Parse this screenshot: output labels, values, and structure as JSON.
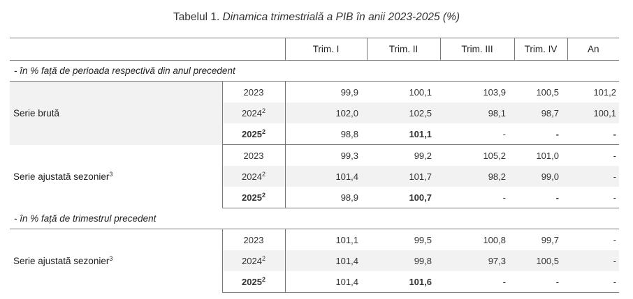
{
  "caption": {
    "prefix": "Tabelul 1.",
    "title": "Dinamica trimestrială a PIB în anii 2023-2025 (%)"
  },
  "headers": [
    "Trim. I",
    "Trim. II",
    "Trim. III",
    "Trim. IV",
    "An"
  ],
  "sections": [
    {
      "title": "- în % față de perioada respectivă din anul precedent",
      "groups": [
        {
          "label": "Serie brută",
          "label_sup": "",
          "rows": [
            {
              "year": "2023",
              "year_sup": "",
              "values": [
                "99,9",
                "100,1",
                "103,9",
                "100,5",
                "101,2"
              ]
            },
            {
              "year": "2024",
              "year_sup": "2",
              "values": [
                "102,0",
                "102,5",
                "98,1",
                "98,7",
                "100,1"
              ]
            },
            {
              "year": "2025",
              "year_sup": "2",
              "values": [
                "98,8",
                "101,1",
                "-",
                "-",
                "-"
              ]
            }
          ]
        },
        {
          "label": "Serie ajustată sezonier",
          "label_sup": "3",
          "rows": [
            {
              "year": "2023",
              "year_sup": "",
              "values": [
                "99,3",
                "99,2",
                "105,2",
                "101,0",
                "-"
              ]
            },
            {
              "year": "2024",
              "year_sup": "2",
              "values": [
                "101,4",
                "101,7",
                "98,2",
                "99,0",
                "-"
              ]
            },
            {
              "year": "2025",
              "year_sup": "2",
              "values": [
                "98,9",
                "100,7",
                "-",
                "-",
                "-"
              ]
            }
          ]
        }
      ]
    },
    {
      "title": "- în % față de trimestrul precedent",
      "groups": [
        {
          "label": "Serie ajustată sezonier",
          "label_sup": "3",
          "rows": [
            {
              "year": "2023",
              "year_sup": "",
              "values": [
                "101,1",
                "99,5",
                "100,8",
                "99,7",
                "-"
              ]
            },
            {
              "year": "2024",
              "year_sup": "2",
              "values": [
                "101,4",
                "99,8",
                "97,3",
                "100,5",
                "-"
              ]
            },
            {
              "year": "2025",
              "year_sup": "2",
              "values": [
                "101,4",
                "101,6",
                "-",
                "-",
                "-"
              ]
            }
          ]
        }
      ]
    }
  ]
}
